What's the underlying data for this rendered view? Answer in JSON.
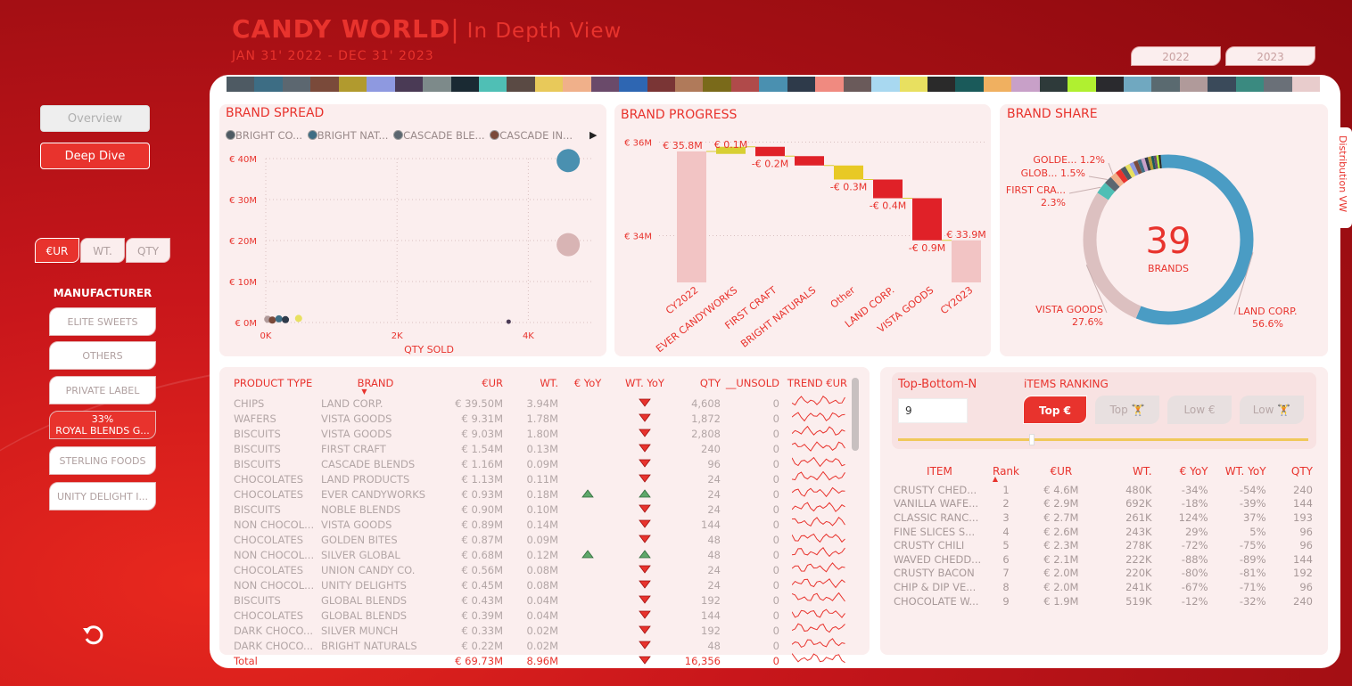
{
  "header": {
    "title": "CANDY WORLD",
    "separator": "|",
    "subtitle": "In Depth View",
    "daterange": "JAN 31' 2022 - DEC 31' 2023"
  },
  "years": [
    "2022",
    "2023"
  ],
  "nav": {
    "overview": "Overview",
    "deep_dive": "Deep Dive"
  },
  "units": [
    "€UR",
    "WT.",
    "QTY"
  ],
  "manufacturer": {
    "title": "MANUFACTURER",
    "items": [
      {
        "label": "ELITE SWEETS"
      },
      {
        "label": "OTHERS"
      },
      {
        "label": "PRIVATE LABEL"
      },
      {
        "label": "ROYAL BLENDS G...",
        "pct": "33%"
      },
      {
        "label": "STERLING FOODS"
      },
      {
        "label": "UNITY DELIGHT I..."
      }
    ]
  },
  "swatch_colors": [
    "#4e5a63",
    "#3d6d84",
    "#5c6770",
    "#7a4a3a",
    "#b19a2e",
    "#8e99e0",
    "#4a3a55",
    "#7d8a8a",
    "#1a2a33",
    "#4fbfb5",
    "#5a4a44",
    "#e8c95a",
    "#f0b08a",
    "#6a4a6a",
    "#2e66b2",
    "#7a3535",
    "#b07a5a",
    "#7a6a1a",
    "#b04a4a",
    "#4a90b0",
    "#2e3a4a",
    "#f08a80",
    "#6a5a5a",
    "#a8d8f0",
    "#e8e060",
    "#2a2a2a",
    "#1a5a5a",
    "#f0b060",
    "#c8a0c8",
    "#2e3a3a",
    "#b0f030",
    "#2a2a2e",
    "#70a8c0",
    "#5a6a70",
    "#b09a9a",
    "#3a4a5a",
    "#3a8a80",
    "#6a7078",
    "#e8cccc"
  ],
  "brand_spread": {
    "title": "BRAND SPREAD",
    "legend": [
      {
        "name": "BRIGHT CO...",
        "color": "#4e5a63"
      },
      {
        "name": "BRIGHT NAT...",
        "color": "#3d6d84"
      },
      {
        "name": "CASCADE BLE...",
        "color": "#5c6770"
      },
      {
        "name": "CASCADE IN...",
        "color": "#7a4a3a"
      }
    ],
    "xlabel": "QTY SOLD",
    "chart_data": {
      "type": "scatter",
      "xlim": [
        0,
        5000
      ],
      "ylim": [
        0,
        40000000
      ],
      "xticks": [
        {
          "v": 0,
          "label": "0K"
        },
        {
          "v": 2000,
          "label": "2K"
        },
        {
          "v": 4000,
          "label": "4K"
        }
      ],
      "yticks": [
        {
          "v": 0,
          "label": "€ 0M"
        },
        {
          "v": 10000000,
          "label": "€ 10M"
        },
        {
          "v": 20000000,
          "label": "€ 20M"
        },
        {
          "v": 30000000,
          "label": "€ 30M"
        },
        {
          "v": 40000000,
          "label": "€ 40M"
        }
      ],
      "points": [
        {
          "x": 4608,
          "y": 39500000,
          "size": "large",
          "color": "#4a90b0"
        },
        {
          "x": 4608,
          "y": 19000000,
          "size": "large",
          "color": "#d8b4b4"
        },
        {
          "x": 30,
          "y": 800000,
          "size": "small",
          "color": "#b09a9a"
        },
        {
          "x": 100,
          "y": 600000,
          "size": "small",
          "color": "#7a4a3a"
        },
        {
          "x": 200,
          "y": 900000,
          "size": "small",
          "color": "#3d6d84"
        },
        {
          "x": 300,
          "y": 700000,
          "size": "small",
          "color": "#2e3a4a"
        },
        {
          "x": 500,
          "y": 1000000,
          "size": "small",
          "color": "#e8e060"
        },
        {
          "x": 3700,
          "y": 200000,
          "size": "tiny",
          "color": "#4a3a55"
        }
      ]
    }
  },
  "brand_progress": {
    "title": "BRAND PROGRESS",
    "chart_data": {
      "type": "bar",
      "ylim": [
        33000000,
        36200000
      ],
      "yticks": [
        {
          "v": 34000000,
          "label": "€ 34M"
        },
        {
          "v": 36000000,
          "label": "€ 36M"
        }
      ],
      "bars": [
        {
          "cat": "CY2022",
          "label": "€ 35.8M",
          "total": true,
          "value": 35800000,
          "color": "#f2c4c4"
        },
        {
          "cat": "EVER CANDYWORKS",
          "label": "€ 0.1M",
          "delta": 100000,
          "color": "#d8cf33"
        },
        {
          "cat": "FIRST CRAFT",
          "label": "-€ 0.2M",
          "delta": -200000,
          "color": "#e02128"
        },
        {
          "cat": "BRIGHT NATURALS",
          "label": "",
          "delta": -200000,
          "color": "#e02128"
        },
        {
          "cat": "Other",
          "label": "-€ 0.3M",
          "delta": -300000,
          "color": "#e8c925"
        },
        {
          "cat": "LAND CORP.",
          "label": "-€ 0.4M",
          "delta": -400000,
          "color": "#e02128"
        },
        {
          "cat": "VISTA GOODS",
          "label": "-€ 0.9M",
          "delta": -900000,
          "color": "#e02128"
        },
        {
          "cat": "CY2023",
          "label": "€ 33.9M",
          "total": true,
          "value": 33900000,
          "color": "#f2c4c4"
        }
      ]
    }
  },
  "brand_share": {
    "title": "BRAND SHARE",
    "count": "39",
    "count_label": "BRANDS",
    "side_tab": "Distribution VW",
    "chart_data": {
      "type": "pie",
      "slices": [
        {
          "name": "LAND CORP.",
          "pct": 56.6,
          "color": "#4a9cc4",
          "label": "LAND CORP.",
          "label_pct": "56.6%"
        },
        {
          "name": "VISTA GOODS",
          "pct": 27.6,
          "color": "#dcc0c0",
          "label": "VISTA GOODS",
          "label_pct": "27.6%"
        },
        {
          "name": "FIRST CRAFT",
          "pct": 2.3,
          "color": "#4fbfb5",
          "label": "FIRST CRA...",
          "label_pct": "2.3%"
        },
        {
          "name": "GLOB",
          "pct": 1.5,
          "color": "#5c6770",
          "label": "GLOB...",
          "label_pct": "1.5%"
        },
        {
          "name": "GOLDEN",
          "pct": 1.2,
          "color": "#f0b08a",
          "label": "GOLDE...",
          "label_pct": "1.2%"
        },
        {
          "name": "o1",
          "pct": 1.1,
          "color": "#e8332d"
        },
        {
          "name": "o2",
          "pct": 1.0,
          "color": "#4e5a63"
        },
        {
          "name": "o3",
          "pct": 0.9,
          "color": "#e8e060"
        },
        {
          "name": "o4",
          "pct": 0.8,
          "color": "#8e99e0"
        },
        {
          "name": "o5",
          "pct": 0.8,
          "color": "#7a4a3a"
        },
        {
          "name": "o6",
          "pct": 0.7,
          "color": "#3d6d84"
        },
        {
          "name": "o7",
          "pct": 0.7,
          "color": "#c8a0c8"
        },
        {
          "name": "o8",
          "pct": 0.6,
          "color": "#2e3a4a"
        },
        {
          "name": "o9",
          "pct": 0.6,
          "color": "#b19a2e"
        },
        {
          "name": "o10",
          "pct": 0.5,
          "color": "#1a5a5a"
        },
        {
          "name": "o11",
          "pct": 0.5,
          "color": "#6a4a6a"
        },
        {
          "name": "o12",
          "pct": 0.4,
          "color": "#b0f030"
        },
        {
          "name": "o13",
          "pct": 0.4,
          "color": "#2a2a2a"
        }
      ]
    }
  },
  "products": {
    "columns": [
      "PRODUCT TYPE",
      "BRAND",
      "€UR",
      "WT.",
      "€ YoY",
      "WT. YoY",
      "QTY",
      "__UNSOLD",
      "TREND €UR"
    ],
    "rows": [
      {
        "type": "CHIPS",
        "brand": "LAND CORP.",
        "eur": "€ 39.50M",
        "wt": "3.94M",
        "eyoy": "",
        "wyoy": "down",
        "qty": "4,608",
        "unsold": "0"
      },
      {
        "type": "WAFERS",
        "brand": "VISTA GOODS",
        "eur": "€ 9.31M",
        "wt": "1.78M",
        "eyoy": "",
        "wyoy": "down",
        "qty": "1,872",
        "unsold": "0"
      },
      {
        "type": "BISCUITS",
        "brand": "VISTA GOODS",
        "eur": "€ 9.03M",
        "wt": "1.80M",
        "eyoy": "",
        "wyoy": "down",
        "qty": "2,808",
        "unsold": "0"
      },
      {
        "type": "BISCUITS",
        "brand": "FIRST CRAFT",
        "eur": "€ 1.54M",
        "wt": "0.13M",
        "eyoy": "",
        "wyoy": "down",
        "qty": "240",
        "unsold": "0"
      },
      {
        "type": "BISCUITS",
        "brand": "CASCADE BLENDS",
        "eur": "€ 1.16M",
        "wt": "0.09M",
        "eyoy": "",
        "wyoy": "down",
        "qty": "96",
        "unsold": "0"
      },
      {
        "type": "CHOCOLATES",
        "brand": "LAND PRODUCTS",
        "eur": "€ 1.13M",
        "wt": "0.11M",
        "eyoy": "",
        "wyoy": "down",
        "qty": "24",
        "unsold": "0"
      },
      {
        "type": "CHOCOLATES",
        "brand": "EVER CANDYWORKS",
        "eur": "€ 0.93M",
        "wt": "0.18M",
        "eyoy": "up",
        "wyoy": "up",
        "qty": "24",
        "unsold": "0"
      },
      {
        "type": "BISCUITS",
        "brand": "NOBLE BLENDS",
        "eur": "€ 0.90M",
        "wt": "0.10M",
        "eyoy": "",
        "wyoy": "down",
        "qty": "24",
        "unsold": "0"
      },
      {
        "type": "NON CHOCOL...",
        "brand": "VISTA GOODS",
        "eur": "€ 0.89M",
        "wt": "0.14M",
        "eyoy": "",
        "wyoy": "down",
        "qty": "144",
        "unsold": "0"
      },
      {
        "type": "CHOCOLATES",
        "brand": "GOLDEN BITES",
        "eur": "€ 0.87M",
        "wt": "0.09M",
        "eyoy": "",
        "wyoy": "down",
        "qty": "48",
        "unsold": "0"
      },
      {
        "type": "NON CHOCOL...",
        "brand": "SILVER GLOBAL",
        "eur": "€ 0.68M",
        "wt": "0.12M",
        "eyoy": "up",
        "wyoy": "up",
        "qty": "48",
        "unsold": "0"
      },
      {
        "type": "CHOCOLATES",
        "brand": "UNION CANDY CO.",
        "eur": "€ 0.56M",
        "wt": "0.08M",
        "eyoy": "",
        "wyoy": "down",
        "qty": "24",
        "unsold": "0"
      },
      {
        "type": "NON CHOCOL...",
        "brand": "UNITY DELIGHTS",
        "eur": "€ 0.45M",
        "wt": "0.08M",
        "eyoy": "",
        "wyoy": "down",
        "qty": "24",
        "unsold": "0"
      },
      {
        "type": "BISCUITS",
        "brand": "GLOBAL BLENDS",
        "eur": "€ 0.43M",
        "wt": "0.04M",
        "eyoy": "",
        "wyoy": "down",
        "qty": "192",
        "unsold": "0"
      },
      {
        "type": "CHOCOLATES",
        "brand": "GLOBAL BLENDS",
        "eur": "€ 0.39M",
        "wt": "0.04M",
        "eyoy": "",
        "wyoy": "down",
        "qty": "144",
        "unsold": "0"
      },
      {
        "type": "DARK CHOCO...",
        "brand": "SILVER MUNCH",
        "eur": "€ 0.33M",
        "wt": "0.02M",
        "eyoy": "",
        "wyoy": "down",
        "qty": "192",
        "unsold": "0"
      },
      {
        "type": "DARK CHOCO...",
        "brand": "BRIGHT NATURALS",
        "eur": "€ 0.22M",
        "wt": "0.02M",
        "eyoy": "",
        "wyoy": "down",
        "qty": "48",
        "unsold": "0"
      }
    ],
    "total": {
      "type": "Total",
      "eur": "€ 69.73M",
      "wt": "8.96M",
      "wyoy": "down",
      "qty": "16,356",
      "unsold": "0"
    }
  },
  "ranking": {
    "topn_label": "Top-Bottom-N",
    "topn_value": "9",
    "title": "iTEMS RANKING",
    "buttons": [
      "Top €",
      "Top 🏋",
      "Low €",
      "Low 🏋"
    ],
    "slider": {
      "value": 9,
      "max": 27
    },
    "columns": [
      "ITEM",
      "Rank",
      "€UR",
      "WT.",
      "€ YoY",
      "WT. YoY",
      "QTY"
    ],
    "rows": [
      {
        "item": "CRUSTY CHED...",
        "rank": "1",
        "eur": "€ 4.6M",
        "wt": "480K",
        "eyoy": "-34%",
        "wyoy": "-54%",
        "qty": "240"
      },
      {
        "item": "VANILLA WAFE...",
        "rank": "2",
        "eur": "€ 2.9M",
        "wt": "692K",
        "eyoy": "-18%",
        "wyoy": "-39%",
        "qty": "144"
      },
      {
        "item": "CLASSIC RANC...",
        "rank": "3",
        "eur": "€ 2.7M",
        "wt": "261K",
        "eyoy": "124%",
        "wyoy": "37%",
        "qty": "193"
      },
      {
        "item": "FINE SLICES S...",
        "rank": "4",
        "eur": "€ 2.6M",
        "wt": "243K",
        "eyoy": "29%",
        "wyoy": "5%",
        "qty": "96"
      },
      {
        "item": "CRUSTY CHILI",
        "rank": "5",
        "eur": "€ 2.3M",
        "wt": "278K",
        "eyoy": "-72%",
        "wyoy": "-75%",
        "qty": "96"
      },
      {
        "item": "WAVED CHEDD...",
        "rank": "6",
        "eur": "€ 2.1M",
        "wt": "222K",
        "eyoy": "-88%",
        "wyoy": "-89%",
        "qty": "144"
      },
      {
        "item": "CRUSTY BACON",
        "rank": "7",
        "eur": "€ 2.0M",
        "wt": "220K",
        "eyoy": "-80%",
        "wyoy": "-81%",
        "qty": "192"
      },
      {
        "item": "CHIP & DIP VE...",
        "rank": "8",
        "eur": "€ 2.0M",
        "wt": "241K",
        "eyoy": "-67%",
        "wyoy": "-71%",
        "qty": "96"
      },
      {
        "item": "CHOCOLATE W...",
        "rank": "9",
        "eur": "€ 1.9M",
        "wt": "519K",
        "eyoy": "-12%",
        "wyoy": "-32%",
        "qty": "240"
      }
    ]
  }
}
